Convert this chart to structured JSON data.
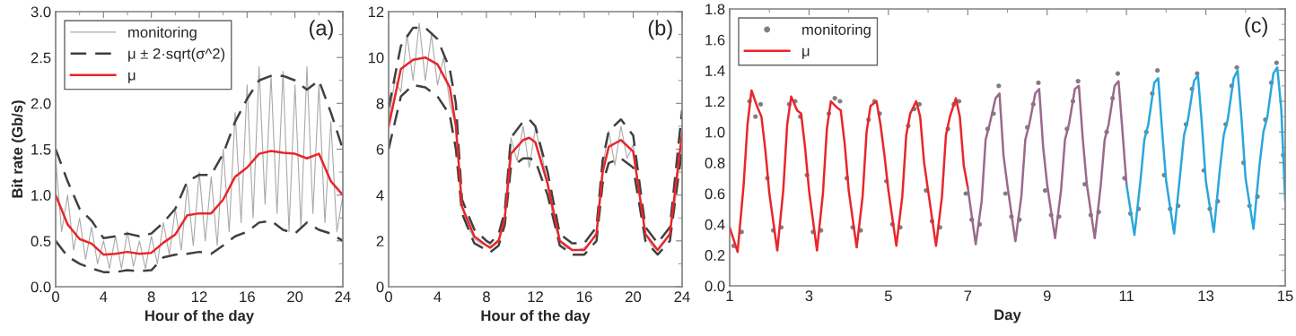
{
  "chart_data": [
    {
      "type": "line",
      "xlabel": "Hour of the day",
      "ylabel": "Bit rate (Gb/s)",
      "annotations": [
        "(a)"
      ],
      "xlim": [
        0,
        24
      ],
      "xticks": [
        0,
        4,
        8,
        12,
        16,
        20,
        24
      ],
      "ylim": [
        0,
        3
      ],
      "yticks": [
        {
          "value": 0,
          "label": "0.0"
        },
        0.5,
        {
          "value": 1,
          "label": "1.0"
        },
        1.5,
        {
          "value": 2,
          "label": "2.0"
        },
        2.5,
        {
          "value": 3,
          "label": "3.0"
        }
      ],
      "legend": "top left",
      "grid": false,
      "series": [
        {
          "name": "monitoring",
          "color": "#a9a9a9",
          "line_style": "solid",
          "x": [
            0,
            0.5,
            1,
            1.5,
            2,
            2.5,
            3,
            3.5,
            4,
            4.5,
            5,
            5.5,
            6,
            6.5,
            7,
            7.5,
            8,
            8.5,
            9,
            9.5,
            10,
            10.5,
            11,
            11.5,
            12,
            12.5,
            13,
            13.5,
            14,
            14.5,
            15,
            15.5,
            16,
            16.5,
            17,
            17.5,
            18,
            18.5,
            19,
            19.5,
            20,
            20.5,
            21,
            21.5,
            22,
            22.5,
            23,
            23.5,
            24
          ],
          "values": [
            1.4,
            0.6,
            1.0,
            0.4,
            0.75,
            0.3,
            0.65,
            0.25,
            0.5,
            0.2,
            0.55,
            0.2,
            0.6,
            0.22,
            0.5,
            0.2,
            0.55,
            0.25,
            0.7,
            0.35,
            0.85,
            0.4,
            1.1,
            0.45,
            1.25,
            0.5,
            1.2,
            0.45,
            1.5,
            0.6,
            1.9,
            0.7,
            2.2,
            0.75,
            2.4,
            0.9,
            2.3,
            0.8,
            2.35,
            0.6,
            2.2,
            0.65,
            2.4,
            0.8,
            2.2,
            0.7,
            1.8,
            0.6,
            1.0
          ]
        },
        {
          "name": "μ ± 2·sqrt(σ^2)",
          "color": "#404040",
          "line_style": "dashed",
          "x": [
            0,
            1,
            2,
            3,
            4,
            5,
            6,
            7,
            8,
            9,
            10,
            11,
            12,
            13,
            14,
            15,
            16,
            17,
            18,
            19,
            20,
            21,
            22,
            23,
            24
          ],
          "values": [
            1.5,
            1.15,
            0.85,
            0.72,
            0.53,
            0.55,
            0.58,
            0.55,
            0.58,
            0.7,
            0.85,
            1.15,
            1.22,
            1.22,
            1.45,
            1.8,
            2.05,
            2.25,
            2.3,
            2.3,
            2.25,
            2.15,
            2.25,
            1.9,
            1.5
          ]
        },
        {
          "color": "#404040",
          "line_style": "dashed",
          "x": [
            0,
            1,
            2,
            3,
            4,
            5,
            6,
            7,
            8,
            9,
            10,
            11,
            12,
            13,
            14,
            15,
            16,
            17,
            18,
            19,
            20,
            21,
            22,
            23,
            24
          ],
          "values": [
            0.5,
            0.33,
            0.25,
            0.2,
            0.16,
            0.16,
            0.18,
            0.17,
            0.18,
            0.32,
            0.35,
            0.36,
            0.38,
            0.36,
            0.45,
            0.55,
            0.6,
            0.7,
            0.72,
            0.62,
            0.58,
            0.7,
            0.62,
            0.58,
            0.5
          ]
        },
        {
          "name": "μ",
          "color": "#e8262b",
          "line_style": "solid",
          "x": [
            0,
            1,
            2,
            3,
            4,
            5,
            6,
            7,
            8,
            9,
            10,
            11,
            12,
            13,
            14,
            15,
            16,
            17,
            18,
            19,
            20,
            21,
            22,
            23,
            24
          ],
          "values": [
            1.0,
            0.68,
            0.52,
            0.47,
            0.35,
            0.36,
            0.38,
            0.36,
            0.37,
            0.48,
            0.57,
            0.78,
            0.8,
            0.8,
            0.95,
            1.2,
            1.3,
            1.45,
            1.48,
            1.46,
            1.45,
            1.4,
            1.45,
            1.15,
            1.0
          ]
        }
      ]
    },
    {
      "type": "line",
      "xlabel": "Hour of the day",
      "annotations": [
        "(b)"
      ],
      "xlim": [
        0,
        24
      ],
      "xticks": [
        0,
        4,
        8,
        12,
        16,
        20,
        24
      ],
      "ylim": [
        0,
        12
      ],
      "yticks": [
        0,
        2,
        4,
        6,
        8,
        10,
        12
      ],
      "grid": false,
      "series": [
        {
          "color": "#a9a9a9",
          "line_style": "solid",
          "x": [
            0,
            0.5,
            1,
            1.5,
            2,
            2.5,
            3,
            3.5,
            4,
            4.5,
            5,
            5.5,
            6,
            6.5,
            7,
            7.5,
            8,
            8.5,
            9,
            9.5,
            10,
            10.5,
            11,
            11.5,
            12,
            12.5,
            13,
            13.5,
            14,
            14.5,
            15,
            15.5,
            16,
            16.5,
            17,
            17.5,
            18,
            18.5,
            19,
            19.5,
            20,
            20.5,
            21,
            21.5,
            22,
            22.5,
            23,
            23.5,
            24
          ],
          "values": [
            7.2,
            9.0,
            8.5,
            11.0,
            9.0,
            11.5,
            9.0,
            11.0,
            8.8,
            10.0,
            8.0,
            7.0,
            3.5,
            2.6,
            2.1,
            1.9,
            1.8,
            1.8,
            2.1,
            3.2,
            6.5,
            5.5,
            7.0,
            5.2,
            6.9,
            5.8,
            4.5,
            2.8,
            2.0,
            1.7,
            1.6,
            1.6,
            1.7,
            1.9,
            2.4,
            5.2,
            6.8,
            5.3,
            7.0,
            5.6,
            6.2,
            4.0,
            2.3,
            1.8,
            1.6,
            1.9,
            2.3,
            4.0,
            6.8
          ]
        },
        {
          "color": "#404040",
          "line_style": "dashed",
          "x": [
            0,
            1,
            2,
            3,
            4,
            5,
            5.5,
            6,
            7,
            8,
            8.3,
            9,
            9.5,
            10,
            11,
            11.5,
            12,
            13,
            14,
            15,
            16,
            17,
            17.5,
            18,
            19,
            20,
            21,
            22,
            23,
            24
          ],
          "values": [
            7.8,
            10.5,
            11.3,
            11.3,
            10.8,
            9.5,
            8,
            3.8,
            2.5,
            2.0,
            1.9,
            2.3,
            3.3,
            6.5,
            7.2,
            7.3,
            7.0,
            5.0,
            2.3,
            1.9,
            1.9,
            2.6,
            5.5,
            6.8,
            7.3,
            6.6,
            2.6,
            1.9,
            2.6,
            7.7
          ]
        },
        {
          "color": "#404040",
          "line_style": "dashed",
          "x": [
            0,
            1,
            2,
            3,
            4,
            5,
            5.5,
            6,
            7,
            8,
            8.3,
            9,
            9.5,
            10,
            11,
            11.5,
            12,
            13,
            14,
            15,
            16,
            17,
            17.5,
            18,
            19,
            20,
            21,
            22,
            23,
            24
          ],
          "values": [
            6,
            8.3,
            8.8,
            8.7,
            8.3,
            7.5,
            6,
            3.2,
            1.9,
            1.6,
            1.5,
            1.8,
            2.7,
            5.2,
            5.6,
            5.6,
            5.5,
            4.0,
            1.8,
            1.4,
            1.4,
            2.0,
            4.5,
            5.4,
            5.6,
            5.2,
            2.0,
            1.4,
            2.0,
            6.0
          ]
        },
        {
          "color": "#e8262b",
          "line_style": "solid",
          "x": [
            0,
            1,
            2,
            3,
            4,
            5,
            5.5,
            6,
            7,
            8,
            8.3,
            9,
            9.5,
            10,
            11,
            11.5,
            12,
            13,
            14,
            15,
            16,
            17,
            17.5,
            18,
            19,
            20,
            21,
            22,
            23,
            24
          ],
          "values": [
            7,
            9.5,
            9.9,
            10,
            9.7,
            8.7,
            7,
            3.5,
            2.2,
            1.8,
            1.7,
            2.0,
            3.0,
            5.8,
            6.4,
            6.5,
            6.3,
            4.5,
            2.0,
            1.6,
            1.6,
            2.3,
            5.0,
            6.1,
            6.4,
            5.9,
            2.3,
            1.6,
            2.3,
            6.7
          ]
        }
      ]
    },
    {
      "type": "line",
      "xlabel": "Day",
      "annotations": [
        "(c)"
      ],
      "xlim": [
        1,
        15
      ],
      "xticks": [
        1,
        3,
        5,
        7,
        9,
        11,
        13,
        15
      ],
      "ylim": [
        0,
        1.8
      ],
      "yticks": [
        {
          "value": 0,
          "label": "0.0"
        },
        0.2,
        0.4,
        0.6,
        0.8,
        {
          "value": 1,
          "label": "1.0"
        },
        1.2,
        1.4,
        1.6,
        1.8
      ],
      "legend": "top left",
      "grid": false,
      "series": [
        {
          "name": "monitoring",
          "type": "scatter",
          "marker": "circle",
          "color": "#7f7f7f",
          "x": [
            1.1,
            1.3,
            1.5,
            1.65,
            1.78,
            1.95,
            2.1,
            2.3,
            2.5,
            2.65,
            2.78,
            2.95,
            3.1,
            3.3,
            3.5,
            3.65,
            3.78,
            3.95,
            4.1,
            4.3,
            4.5,
            4.65,
            4.78,
            4.95,
            5.1,
            5.3,
            5.5,
            5.65,
            5.78,
            5.95,
            6.1,
            6.3,
            6.5,
            6.65,
            6.78,
            6.95,
            7.1,
            7.3,
            7.5,
            7.65,
            7.78,
            7.95,
            8.1,
            8.3,
            8.5,
            8.65,
            8.78,
            8.95,
            9.1,
            9.3,
            9.5,
            9.65,
            9.78,
            9.95,
            10.1,
            10.3,
            10.5,
            10.65,
            10.78,
            10.95,
            11.1,
            11.3,
            11.5,
            11.65,
            11.78,
            11.95,
            12.1,
            12.3,
            12.5,
            12.65,
            12.78,
            12.95,
            13.1,
            13.3,
            13.5,
            13.65,
            13.78,
            13.95,
            14.1,
            14.3,
            14.5,
            14.65,
            14.78,
            14.95
          ],
          "values": [
            0.26,
            0.35,
            1.2,
            1.1,
            1.18,
            0.7,
            0.36,
            0.38,
            1.18,
            1.2,
            1.1,
            0.72,
            0.35,
            0.36,
            1.12,
            1.22,
            1.2,
            0.7,
            0.38,
            0.36,
            1.08,
            1.2,
            1.12,
            0.68,
            0.4,
            0.38,
            1.04,
            1.15,
            1.18,
            0.62,
            0.42,
            0.38,
            1.02,
            1.18,
            1.2,
            0.6,
            0.43,
            0.4,
            1.02,
            1.12,
            1.3,
            0.6,
            0.45,
            0.43,
            1.03,
            1.18,
            1.32,
            0.62,
            0.46,
            0.45,
            1.02,
            1.2,
            1.33,
            0.66,
            0.46,
            0.48,
            1.0,
            1.22,
            1.38,
            0.7,
            0.47,
            0.5,
            1.0,
            1.25,
            1.4,
            0.72,
            0.5,
            0.52,
            1.05,
            1.28,
            1.38,
            0.75,
            0.5,
            0.55,
            1.05,
            1.3,
            1.42,
            0.8,
            0.52,
            0.58,
            1.08,
            1.32,
            1.45,
            0.85
          ]
        },
        {
          "name": "μ",
          "type": "line",
          "line_style": "solid",
          "color": "#e8262b",
          "x": [
            1,
            1.2,
            1.35,
            1.45,
            1.55,
            1.7,
            1.8,
            1.9,
            2,
            2.2,
            2.35,
            2.45,
            2.55,
            2.7,
            2.8,
            2.9,
            3,
            3.2,
            3.35,
            3.45,
            3.55,
            3.7,
            3.8,
            3.9,
            4,
            4.2,
            4.35,
            4.45,
            4.55,
            4.7,
            4.8,
            4.9,
            5,
            5.2,
            5.35,
            5.45,
            5.55,
            5.7,
            5.8,
            5.9,
            6,
            6.2,
            6.35,
            6.45,
            6.55,
            6.7,
            6.8,
            6.9,
            7
          ],
          "values": [
            0.38,
            0.22,
            0.65,
            1.05,
            1.27,
            1.16,
            1.1,
            0.88,
            0.6,
            0.23,
            0.62,
            1.05,
            1.23,
            1.14,
            1.12,
            0.9,
            0.62,
            0.23,
            0.6,
            1.02,
            1.2,
            1.16,
            1.14,
            0.92,
            0.62,
            0.25,
            0.58,
            1.0,
            1.17,
            1.2,
            1.05,
            0.85,
            0.62,
            0.26,
            0.58,
            0.98,
            1.12,
            1.2,
            1.1,
            0.8,
            0.62,
            0.26,
            0.58,
            0.98,
            1.1,
            1.22,
            1.1,
            0.78,
            0.64
          ]
        },
        {
          "type": "line",
          "line_style": "solid",
          "color": "#9a6a8a",
          "x": [
            7,
            7.2,
            7.35,
            7.45,
            7.55,
            7.7,
            7.8,
            7.9,
            8,
            8.2,
            8.35,
            8.45,
            8.55,
            8.7,
            8.8,
            8.9,
            9,
            9.2,
            9.35,
            9.45,
            9.55,
            9.7,
            9.8,
            9.9,
            10,
            10.2,
            10.35,
            10.45,
            10.55,
            10.7,
            10.8,
            10.9,
            11
          ],
          "values": [
            0.64,
            0.27,
            0.55,
            0.95,
            1.05,
            1.22,
            1.25,
            0.85,
            0.65,
            0.29,
            0.58,
            0.95,
            1.05,
            1.25,
            1.28,
            0.9,
            0.66,
            0.31,
            0.62,
            0.95,
            1.05,
            1.28,
            1.3,
            0.95,
            0.66,
            0.31,
            0.65,
            0.95,
            1.05,
            1.3,
            1.33,
            1.0,
            0.66
          ]
        },
        {
          "type": "line",
          "line_style": "solid",
          "color": "#2aa7dc",
          "x": [
            11,
            11.2,
            11.35,
            11.45,
            11.55,
            11.7,
            11.8,
            11.9,
            12,
            12.2,
            12.35,
            12.45,
            12.55,
            12.7,
            12.8,
            12.9,
            13,
            13.2,
            13.35,
            13.45,
            13.55,
            13.7,
            13.8,
            13.9,
            14,
            14.2,
            14.35,
            14.45,
            14.55,
            14.7,
            14.8,
            14.9,
            15
          ],
          "values": [
            0.66,
            0.33,
            0.68,
            0.95,
            1.05,
            1.32,
            1.35,
            1.0,
            0.68,
            0.34,
            0.72,
            0.98,
            1.08,
            1.33,
            1.37,
            1.05,
            0.68,
            0.35,
            0.75,
            0.98,
            1.08,
            1.35,
            1.4,
            1.08,
            0.7,
            0.37,
            0.78,
            1.0,
            1.1,
            1.38,
            1.42,
            1.15,
            0.55
          ]
        }
      ]
    }
  ]
}
